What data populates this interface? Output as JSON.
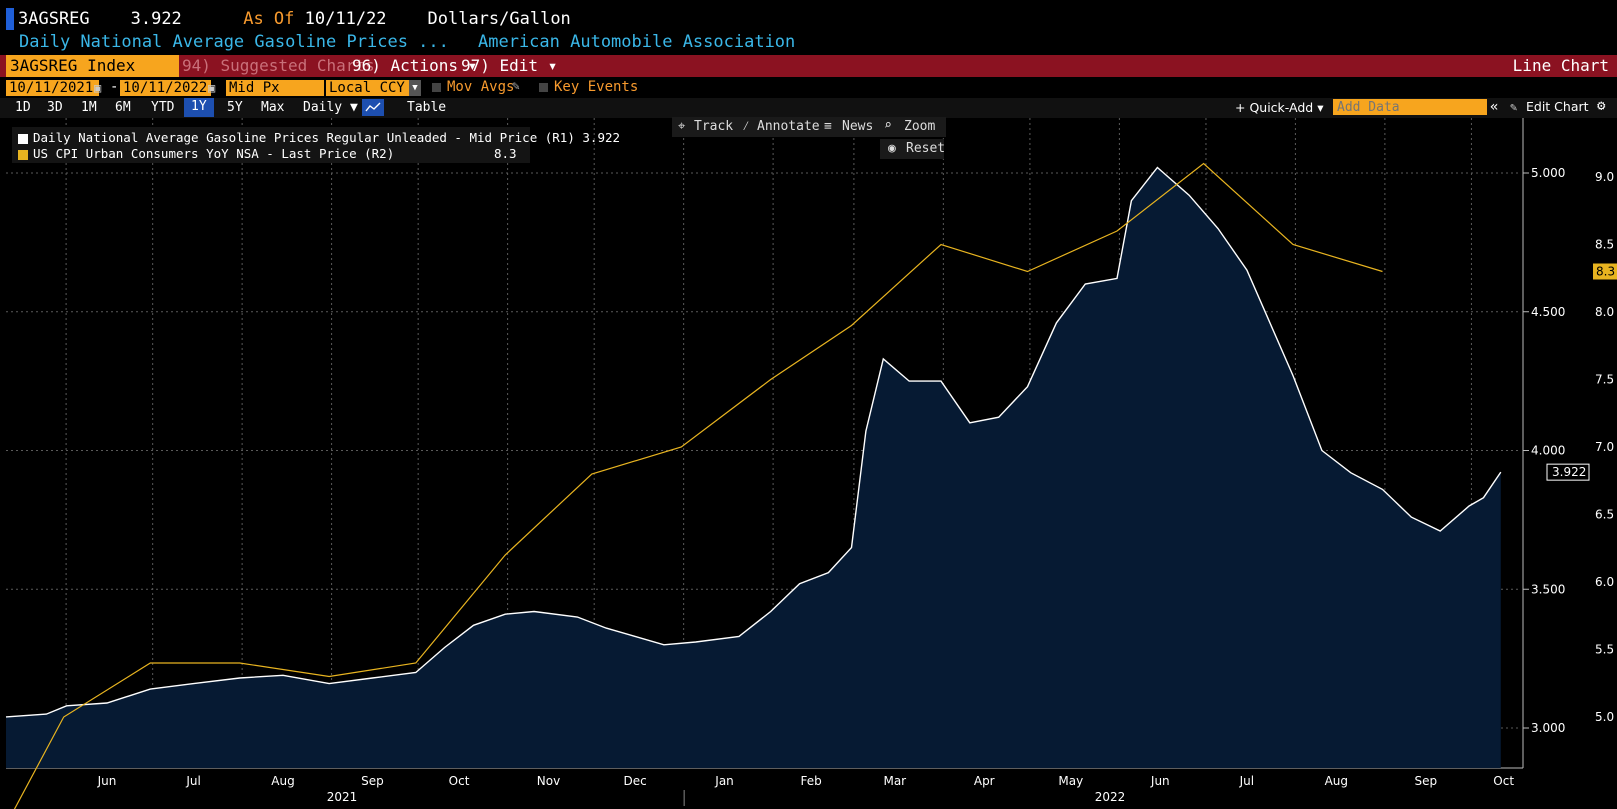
{
  "header": {
    "ticker": "3AGSREG",
    "price": "3.922",
    "as_of_label": "As Of",
    "as_of_date": "10/11/22",
    "units": "Dollars/Gallon",
    "description": "Daily National Average Gasoline Prices ...",
    "source": "American Automobile Association"
  },
  "menubar": {
    "security": "3AGSREG Index",
    "suggested": "94) Suggested Charts",
    "actions": "96) Actions ▾",
    "edit": "97) Edit ▾",
    "chart_type": "Line Chart"
  },
  "controls": {
    "start_date": "10/11/2021",
    "dash": "-",
    "end_date": "10/11/2022",
    "field": "Mid Px",
    "currency": "Local CCY",
    "mov_avgs": "Mov Avgs",
    "key_events": "Key Events"
  },
  "timebar": {
    "ranges": [
      "1D",
      "3D",
      "1M",
      "6M",
      "YTD",
      "1Y",
      "5Y",
      "Max"
    ],
    "active": "1Y",
    "frequency": "Daily ▼",
    "table": "Table",
    "quick_add": "+ Quick-Add ▾",
    "add_data_placeholder": "Add Data",
    "collapse": "«",
    "edit_chart": "Edit Chart",
    "settings_icon": "gear-icon"
  },
  "tools": {
    "track": "Track",
    "annotate": "Annotate",
    "news": "News",
    "zoom": "Zoom",
    "reset": "Reset"
  },
  "legend": [
    {
      "name": "Daily National Average Gasoline Prices Regular Unleaded - Mid Price (R1)",
      "value": "3.922",
      "color": "#ffffff"
    },
    {
      "name": "US CPI Urban Consumers YoY NSA - Last Price (R2)",
      "value": "8.3",
      "color": "#e8b420"
    }
  ],
  "chart_data": {
    "type": "line",
    "x_month_labels": [
      "Jun",
      "Jul",
      "Aug",
      "Sep",
      "Oct",
      "Nov",
      "Dec",
      "Jan",
      "Feb",
      "Mar",
      "Apr",
      "May",
      "Jun",
      "Jul",
      "Aug",
      "Sep",
      "Oct"
    ],
    "x_year_labels": [
      "2021",
      "2022"
    ],
    "r1_ticks": [
      "5.000",
      "4.500",
      "4.000",
      "3.500",
      "3.000"
    ],
    "r1_ylim": [
      2.9,
      5.1
    ],
    "r2_ticks": [
      "9.0",
      "8.5",
      "8.0",
      "7.5",
      "7.0",
      "6.5",
      "6.0",
      "5.5",
      "5.0"
    ],
    "r2_ylim": [
      4.6,
      9.1
    ],
    "series": [
      {
        "name": "Daily National Average Gasoline Prices Regular Unleaded - Mid Price (R1)",
        "axis": "R1",
        "color": "#ffffff",
        "fill": "#061a33",
        "last_label": "3.922",
        "x": [
          "2021-05-11",
          "2021-05-25",
          "2021-06-01",
          "2021-06-15",
          "2021-06-30",
          "2021-07-15",
          "2021-07-31",
          "2021-08-15",
          "2021-08-31",
          "2021-09-15",
          "2021-09-30",
          "2021-10-10",
          "2021-10-20",
          "2021-10-31",
          "2021-11-10",
          "2021-11-25",
          "2021-12-05",
          "2021-12-15",
          "2021-12-25",
          "2022-01-05",
          "2022-01-20",
          "2022-01-31",
          "2022-02-10",
          "2022-02-20",
          "2022-02-28",
          "2022-03-05",
          "2022-03-11",
          "2022-03-20",
          "2022-03-31",
          "2022-04-10",
          "2022-04-20",
          "2022-04-30",
          "2022-05-10",
          "2022-05-20",
          "2022-05-31",
          "2022-06-05",
          "2022-06-14",
          "2022-06-25",
          "2022-07-05",
          "2022-07-15",
          "2022-07-31",
          "2022-08-10",
          "2022-08-20",
          "2022-08-31",
          "2022-09-10",
          "2022-09-20",
          "2022-09-30",
          "2022-10-05",
          "2022-10-11"
        ],
        "values": [
          3.04,
          3.05,
          3.08,
          3.09,
          3.14,
          3.16,
          3.18,
          3.19,
          3.16,
          3.18,
          3.2,
          3.29,
          3.37,
          3.41,
          3.42,
          3.4,
          3.36,
          3.33,
          3.3,
          3.31,
          3.33,
          3.42,
          3.52,
          3.56,
          3.65,
          4.07,
          4.33,
          4.25,
          4.25,
          4.1,
          4.12,
          4.23,
          4.46,
          4.6,
          4.62,
          4.9,
          5.02,
          4.92,
          4.8,
          4.65,
          4.27,
          4.0,
          3.92,
          3.86,
          3.76,
          3.71,
          3.8,
          3.83,
          3.922
        ]
      },
      {
        "name": "US CPI Urban Consumers YoY NSA - Last Price (R2)",
        "axis": "R2",
        "color": "#e8b420",
        "last_label": "8.3",
        "x": [
          "2021-04-30",
          "2021-05-31",
          "2021-06-30",
          "2021-07-31",
          "2021-08-31",
          "2021-09-30",
          "2021-10-31",
          "2021-11-30",
          "2021-12-31",
          "2022-01-31",
          "2022-02-28",
          "2022-03-31",
          "2022-04-30",
          "2022-05-31",
          "2022-06-30",
          "2022-07-31",
          "2022-08-31"
        ],
        "values": [
          4.2,
          5.0,
          5.4,
          5.4,
          5.3,
          5.4,
          6.2,
          6.8,
          7.0,
          7.5,
          7.9,
          8.5,
          8.3,
          8.6,
          9.1,
          8.5,
          8.3
        ]
      }
    ],
    "grid": true,
    "legend_position": "top-left"
  }
}
